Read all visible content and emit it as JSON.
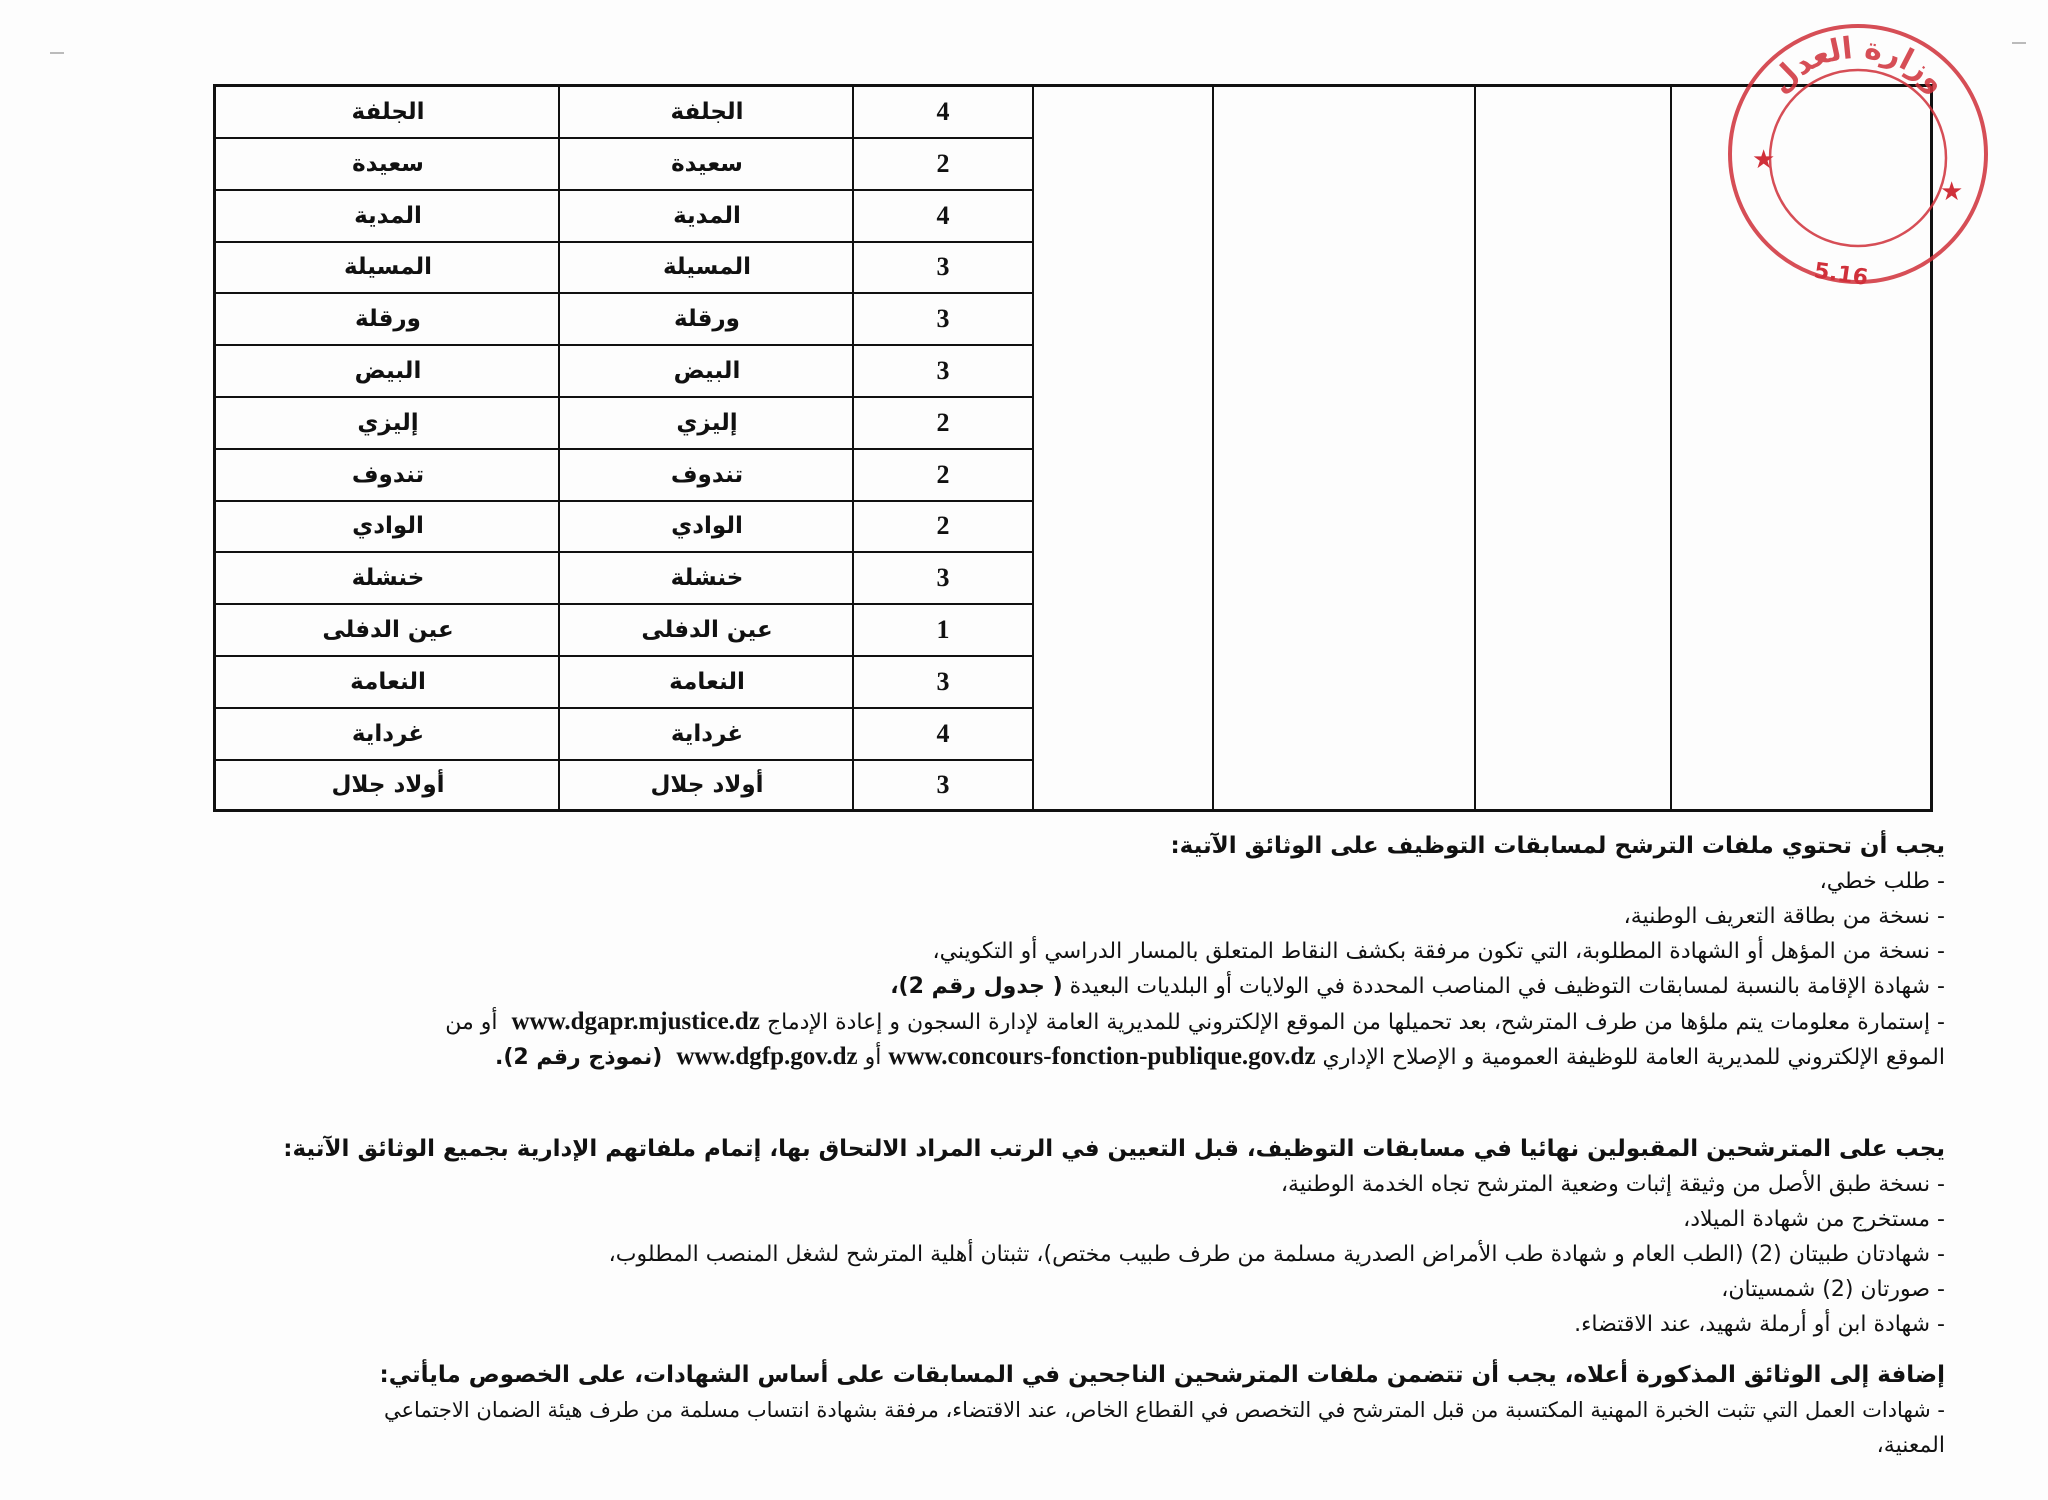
{
  "stamp": {
    "text": "وزارة العدل",
    "number": "5.16",
    "color": "#d0303a"
  },
  "table": {
    "rows": [
      {
        "count": "4",
        "wilaya": "الجلفة",
        "wilaya_2": "الجلفة"
      },
      {
        "count": "2",
        "wilaya": "سعيدة",
        "wilaya_2": "سعيدة"
      },
      {
        "count": "4",
        "wilaya": "المدية",
        "wilaya_2": "المدية"
      },
      {
        "count": "3",
        "wilaya": "المسيلة",
        "wilaya_2": "المسيلة"
      },
      {
        "count": "3",
        "wilaya": "ورقلة",
        "wilaya_2": "ورقلة"
      },
      {
        "count": "3",
        "wilaya": "البيض",
        "wilaya_2": "البيض"
      },
      {
        "count": "2",
        "wilaya": "إليزي",
        "wilaya_2": "إليزي"
      },
      {
        "count": "2",
        "wilaya": "تندوف",
        "wilaya_2": "تندوف"
      },
      {
        "count": "2",
        "wilaya": "الوادي",
        "wilaya_2": "الوادي"
      },
      {
        "count": "3",
        "wilaya": "خنشلة",
        "wilaya_2": "خنشلة"
      },
      {
        "count": "1",
        "wilaya": "عين الدفلى",
        "wilaya_2": "عين الدفلى"
      },
      {
        "count": "3",
        "wilaya": "النعامة",
        "wilaya_2": "النعامة"
      },
      {
        "count": "4",
        "wilaya": "غرداية",
        "wilaya_2": "غرداية"
      },
      {
        "count": "3",
        "wilaya": "أولاد جلال",
        "wilaya_2": "أولاد جلال"
      }
    ]
  },
  "section1": {
    "heading": "يجب أن تحتوي ملفات الترشح لمسابقات التوظيف على الوثائق الآتية:",
    "items": [
      "- طلب خطي،",
      "- نسخة من بطاقة التعريف الوطنية،",
      "- نسخة من المؤهل أو الشهادة المطلوبة، التي تكون مرفقة بكشف النقاط المتعلق بالمسار الدراسي أو التكويني،"
    ],
    "residence": "- شهادة الإقامة بالنسبة لمسابقات التوظيف في المناصب المحددة في الولايات أو البلديات البعيدة",
    "residence_ref": "( جدول رقم 2)،",
    "form_a": "- إستمارة معلومات يتم ملؤها من طرف المترشح، بعد تحميلها من الموقع الإلكتروني للمديرية العامة لإدارة السجون و إعادة الإدماج",
    "url1": "www.dgapr.mjustice.dz",
    "form_b": "أو من",
    "form_c": "الموقع الإلكتروني للمديرية العامة للوظيفة العمومية و الإصلاح الإداري",
    "url2": "www.concours-fonction-publique.gov.dz",
    "or": "أو",
    "url3": "www.dgfp.gov.dz",
    "form_ref": "(نموذج رقم 2)."
  },
  "section2": {
    "heading": "يجب على المترشحين المقبولين نهائيا في مسابقات التوظيف، قبل التعيين في الرتب المراد الالتحاق بها، إتمام ملفاتهم الإدارية بجميع الوثائق الآتية:",
    "items": [
      "- نسخة طبق الأصل من وثيقة إثبات وضعية المترشح تجاه الخدمة الوطنية،",
      "- مستخرج من شهادة الميلاد،",
      "- شهادتان طبيتان (2) (الطب العام و شهادة طب الأمراض الصدرية مسلمة من طرف طبيب مختص)، تثبتان أهلية المترشح لشغل المنصب المطلوب،",
      "- صورتان (2) شمسيتان،",
      "- شهادة ابن أو أرملة شهيد، عند الاقتضاء."
    ]
  },
  "section3": {
    "heading": "إضافة إلى الوثائق المذكورة أعلاه، يجب أن تتضمن ملفات المترشحين الناجحين في المسابقات على أساس الشهادات، على الخصوص مايأتي:",
    "items": [
      "- شهادات العمل التي تثبت الخبرة المهنية المكتسبة من قبل المترشح في التخصص في القطاع الخاص، عند الاقتضاء، مرفقة بشهادة انتساب مسلمة من طرف هيئة الضمان الاجتماعي",
      "المعنية،"
    ]
  }
}
